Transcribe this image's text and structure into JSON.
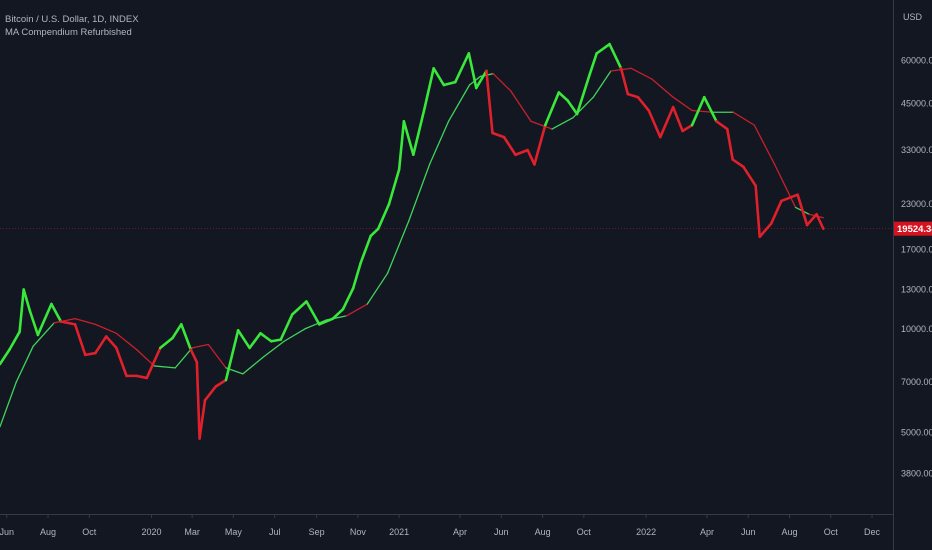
{
  "legend": {
    "symbol_line": "Bitcoin / U.S. Dollar, 1D, INDEX",
    "indicator_line": "MA Compendium Refurbished"
  },
  "colors": {
    "background": "#131722",
    "bull": "#39e83b",
    "bear": "#e0202b",
    "ma_up": "#3fd45a",
    "ma_down": "#c8202b",
    "price_line": "#8b1a22",
    "price_badge": "#d5121f",
    "axis_text": "#b2b5be",
    "axis_line": "#363a45"
  },
  "chart_data": {
    "type": "line",
    "scale": "log",
    "currency_label": "USD",
    "last_price": 19524.34,
    "last_price_label": "19524.34",
    "y_ticks": [
      "60000.00",
      "45000.00",
      "33000.00",
      "23000.00",
      "17000.00",
      "13000.00",
      "10000.00",
      "7000.00",
      "5000.00",
      "3800.00"
    ],
    "y_tick_values": [
      60000,
      45000,
      33000,
      23000,
      17000,
      13000,
      10000,
      7000,
      5000,
      3800
    ],
    "ylim": [
      2900,
      90000
    ],
    "x_ticks": [
      "Jun",
      "Aug",
      "Oct",
      "2020",
      "Mar",
      "May",
      "Jul",
      "Sep",
      "Nov",
      "2021",
      "Apr",
      "Jun",
      "Aug",
      "Oct",
      "2022",
      "Apr",
      "Jun",
      "Aug",
      "Oct",
      "Dec"
    ],
    "x_tick_dates": [
      "2019-06-01",
      "2019-08-01",
      "2019-10-01",
      "2020-01-01",
      "2020-03-01",
      "2020-05-01",
      "2020-07-01",
      "2020-09-01",
      "2020-11-01",
      "2021-01-01",
      "2021-04-01",
      "2021-06-01",
      "2021-08-01",
      "2021-10-01",
      "2022-01-01",
      "2022-04-01",
      "2022-06-01",
      "2022-08-01",
      "2022-10-01",
      "2022-12-01"
    ],
    "x_range": [
      "2019-05-22",
      "2023-01-01"
    ],
    "price_series": {
      "dates": [
        "2019-05-22",
        "2019-06-05",
        "2019-06-20",
        "2019-06-26",
        "2019-07-05",
        "2019-07-17",
        "2019-08-06",
        "2019-08-20",
        "2019-09-10",
        "2019-09-25",
        "2019-10-10",
        "2019-10-26",
        "2019-11-10",
        "2019-11-25",
        "2019-12-10",
        "2019-12-25",
        "2020-01-14",
        "2020-02-01",
        "2020-02-14",
        "2020-02-28",
        "2020-03-08",
        "2020-03-12",
        "2020-03-20",
        "2020-04-05",
        "2020-04-20",
        "2020-05-08",
        "2020-05-25",
        "2020-06-10",
        "2020-06-26",
        "2020-07-10",
        "2020-07-27",
        "2020-08-17",
        "2020-09-05",
        "2020-09-25",
        "2020-10-10",
        "2020-10-25",
        "2020-11-05",
        "2020-11-20",
        "2020-12-01",
        "2020-12-17",
        "2021-01-01",
        "2021-01-08",
        "2021-01-22",
        "2021-02-08",
        "2021-02-21",
        "2021-03-08",
        "2021-03-25",
        "2021-04-14",
        "2021-04-25",
        "2021-05-10",
        "2021-05-19",
        "2021-06-05",
        "2021-06-22",
        "2021-07-10",
        "2021-07-20",
        "2021-08-05",
        "2021-08-25",
        "2021-09-07",
        "2021-09-21",
        "2021-10-10",
        "2021-10-20",
        "2021-11-08",
        "2021-11-25",
        "2021-12-05",
        "2021-12-20",
        "2022-01-05",
        "2022-01-22",
        "2022-02-10",
        "2022-02-24",
        "2022-03-10",
        "2022-03-28",
        "2022-04-15",
        "2022-05-01",
        "2022-05-09",
        "2022-05-25",
        "2022-06-12",
        "2022-06-18",
        "2022-07-05",
        "2022-07-20",
        "2022-08-13",
        "2022-08-27",
        "2022-09-10",
        "2022-09-20"
      ],
      "close": [
        7900,
        8700,
        9800,
        13000,
        11300,
        9600,
        11800,
        10500,
        10300,
        8400,
        8500,
        9500,
        8800,
        7300,
        7300,
        7200,
        8800,
        9400,
        10300,
        8700,
        8000,
        4800,
        6200,
        6800,
        7100,
        9900,
        8800,
        9700,
        9200,
        9300,
        11000,
        12000,
        10300,
        10700,
        11400,
        13100,
        15500,
        18600,
        19500,
        23000,
        29000,
        40000,
        32000,
        44000,
        57000,
        51000,
        52000,
        63000,
        50000,
        56000,
        37000,
        36000,
        32000,
        33000,
        30000,
        39000,
        48500,
        46000,
        42000,
        55000,
        63000,
        67000,
        57000,
        48000,
        47000,
        43000,
        36000,
        44000,
        37500,
        39000,
        47000,
        40000,
        38000,
        31000,
        29500,
        26000,
        18500,
        20200,
        23500,
        24500,
        20000,
        21500,
        19524.34
      ]
    },
    "ma_series": {
      "dates": [
        "2019-05-22",
        "2019-06-15",
        "2019-07-10",
        "2019-08-10",
        "2019-09-10",
        "2019-10-10",
        "2019-11-10",
        "2019-12-10",
        "2020-01-05",
        "2020-02-05",
        "2020-03-01",
        "2020-03-25",
        "2020-04-20",
        "2020-05-15",
        "2020-06-15",
        "2020-07-15",
        "2020-08-15",
        "2020-09-15",
        "2020-10-15",
        "2020-11-15",
        "2020-12-15",
        "2021-01-15",
        "2021-02-15",
        "2021-03-15",
        "2021-04-15",
        "2021-05-01",
        "2021-05-20",
        "2021-06-15",
        "2021-07-15",
        "2021-08-15",
        "2021-09-15",
        "2021-10-15",
        "2021-11-10",
        "2021-12-10",
        "2022-01-10",
        "2022-02-10",
        "2022-03-10",
        "2022-04-10",
        "2022-05-10",
        "2022-06-10",
        "2022-07-10",
        "2022-08-10",
        "2022-08-30",
        "2022-09-20"
      ],
      "values": [
        5200,
        7000,
        8900,
        10400,
        10700,
        10300,
        9700,
        8700,
        7800,
        7700,
        8800,
        9000,
        7700,
        7400,
        8300,
        9200,
        10000,
        10600,
        10900,
        11800,
        14500,
        20500,
        30000,
        40000,
        51000,
        54000,
        55000,
        49000,
        40000,
        38000,
        41000,
        47000,
        56000,
        57000,
        53000,
        47000,
        43000,
        42500,
        42500,
        39000,
        30000,
        22500,
        21500,
        21000
      ],
      "direction": [
        "up",
        "up",
        "up",
        "down",
        "down",
        "down",
        "down",
        "down",
        "up",
        "up",
        "down",
        "down",
        "up",
        "up",
        "up",
        "up",
        "up",
        "up",
        "down",
        "up",
        "up",
        "up",
        "up",
        "up",
        "up",
        "up",
        "down",
        "down",
        "down",
        "up",
        "up",
        "up",
        "down",
        "down",
        "down",
        "down",
        "down",
        "up",
        "down",
        "down",
        "down",
        "up",
        "down",
        "down"
      ]
    }
  }
}
